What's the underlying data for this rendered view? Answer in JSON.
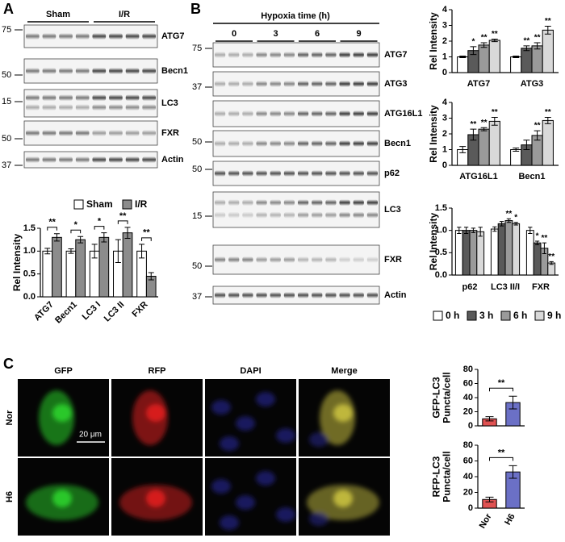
{
  "figure": {
    "panels": [
      "A",
      "B",
      "C"
    ],
    "blot_a": {
      "groups": [
        "Sham",
        "I/R"
      ],
      "markers": [
        75,
        50,
        15,
        50,
        37
      ],
      "proteins": [
        "ATG7",
        "Becn1",
        "LC3",
        "FXR",
        "Actin"
      ]
    },
    "blot_b": {
      "title": "Hypoxia time (h)",
      "groups": [
        "0",
        "3",
        "6",
        "9"
      ],
      "markers": [
        75,
        37,
        50,
        50,
        15,
        50,
        37
      ],
      "proteins": [
        "ATG7",
        "ATG3",
        "ATG16L1",
        "Becn1",
        "p62",
        "LC3",
        "FXR",
        "Actin"
      ]
    },
    "images": {
      "columns": [
        "GFP",
        "RFP",
        "DAPI",
        "Merge"
      ],
      "rows": [
        "Nor",
        "H6"
      ],
      "scale_bar": "20 μm"
    }
  },
  "chart_data": [
    {
      "type": "bar",
      "ylabel": "Rel Intensity",
      "categories": [
        "ATG7",
        "Becn1",
        "LC3 I",
        "LC3 II",
        "FXR"
      ],
      "series": [
        {
          "name": "Sham",
          "color": "#ffffff",
          "values": [
            1,
            1,
            1,
            1,
            1
          ],
          "errors": [
            0.06,
            0.05,
            0.15,
            0.25,
            0.15
          ]
        },
        {
          "name": "I/R",
          "color": "#8c8c8c",
          "values": [
            1.3,
            1.25,
            1.3,
            1.4,
            0.45
          ],
          "errors": [
            0.08,
            0.07,
            0.1,
            0.12,
            0.08
          ]
        }
      ],
      "significance": [
        "**",
        "*",
        "*",
        "**",
        "**"
      ],
      "ylim": [
        0,
        1.5
      ],
      "yticks": [
        {
          "value": 0,
          "label": "0.0"
        },
        {
          "value": 0.5,
          "label": "0.5"
        },
        {
          "value": 1,
          "label": "1.0"
        },
        {
          "value": 1.5,
          "label": "1.5"
        }
      ],
      "legend": "top"
    },
    {
      "type": "bar",
      "ylabel": "Rel Intensity",
      "categories": [
        "ATG7",
        "ATG3"
      ],
      "series": [
        {
          "color": "#ffffff",
          "values": [
            1,
            1
          ],
          "errors": [
            0.05,
            0.05
          ]
        },
        {
          "color": "#5a5a5a",
          "values": [
            1.4,
            1.55
          ],
          "errors": [
            0.25,
            0.15
          ],
          "significance": [
            "*",
            "**"
          ]
        },
        {
          "color": "#9a9a9a",
          "values": [
            1.75,
            1.7
          ],
          "errors": [
            0.15,
            0.2
          ],
          "significance": [
            "**",
            "**"
          ]
        },
        {
          "color": "#d9d9d9",
          "values": [
            2.05,
            2.7
          ],
          "errors": [
            0.08,
            0.25
          ],
          "significance": [
            "**",
            "**"
          ]
        }
      ],
      "ylim": [
        0,
        4
      ],
      "yticks": [
        0,
        1,
        2,
        3,
        4
      ]
    },
    {
      "type": "bar",
      "ylabel": "Rel Intensity",
      "categories": [
        "ATG16L1",
        "Becn1"
      ],
      "series": [
        {
          "color": "#ffffff",
          "values": [
            1,
            1
          ],
          "errors": [
            0.2,
            0.1
          ]
        },
        {
          "color": "#5a5a5a",
          "values": [
            1.95,
            1.3
          ],
          "errors": [
            0.35,
            0.3
          ],
          "significance": [
            "**",
            null
          ]
        },
        {
          "color": "#9a9a9a",
          "values": [
            2.3,
            1.9
          ],
          "errors": [
            0.1,
            0.3
          ],
          "significance": [
            "**",
            "**"
          ]
        },
        {
          "color": "#d9d9d9",
          "values": [
            2.8,
            2.85
          ],
          "errors": [
            0.25,
            0.2
          ],
          "significance": [
            "**",
            "**"
          ]
        }
      ],
      "ylim": [
        0,
        4
      ],
      "yticks": [
        0,
        1,
        2,
        3,
        4
      ]
    },
    {
      "type": "bar",
      "ylabel": "Rel Intensity",
      "categories": [
        "p62",
        "LC3 II/I",
        "FXR"
      ],
      "series": [
        {
          "name": "0 h",
          "color": "#ffffff",
          "values": [
            1,
            1.03,
            1
          ],
          "errors": [
            0.07,
            0.05,
            0.07
          ]
        },
        {
          "name": "3 h",
          "color": "#5a5a5a",
          "values": [
            1,
            1.15,
            0.72
          ],
          "errors": [
            0.07,
            0.05,
            0.04
          ],
          "significance": [
            null,
            null,
            "*"
          ]
        },
        {
          "name": "6 h",
          "color": "#9a9a9a",
          "values": [
            1,
            1.22,
            0.6
          ],
          "errors": [
            0.05,
            0.04,
            0.12
          ],
          "significance": [
            null,
            "**",
            "**"
          ]
        },
        {
          "name": "9 h",
          "color": "#d9d9d9",
          "values": [
            0.97,
            1.15,
            0.27
          ],
          "errors": [
            0.1,
            0.03,
            0.03
          ],
          "significance": [
            null,
            "*",
            "**"
          ]
        }
      ],
      "ylim": [
        0,
        1.5
      ],
      "yticks": [
        {
          "value": 0,
          "label": "0.0"
        },
        {
          "value": 0.5,
          "label": "0.5"
        },
        {
          "value": 1,
          "label": "1.0"
        },
        {
          "value": 1.5,
          "label": "1.5"
        }
      ],
      "legend": "bottom"
    },
    {
      "type": "bar",
      "ylabel": [
        "GFP-LC3",
        "Puncta/cell"
      ],
      "categories": [
        null,
        null
      ],
      "series": [
        {
          "colors": [
            "#e05252",
            "#6b70c6"
          ],
          "values": [
            10,
            33
          ],
          "errors": [
            3,
            9
          ]
        }
      ],
      "significance": "**",
      "ylim": [
        0,
        80
      ],
      "yticks": [
        0,
        20,
        40,
        60,
        80
      ]
    },
    {
      "type": "bar",
      "ylabel": [
        "RFP-LC3",
        "Puncta/cell"
      ],
      "categories": [
        "Nor",
        "H6"
      ],
      "series": [
        {
          "colors": [
            "#e05252",
            "#6b70c6"
          ],
          "values": [
            11,
            46
          ],
          "errors": [
            3,
            8
          ]
        }
      ],
      "significance": "**",
      "ylim": [
        0,
        80
      ],
      "yticks": [
        0,
        20,
        40,
        60,
        80
      ]
    }
  ]
}
